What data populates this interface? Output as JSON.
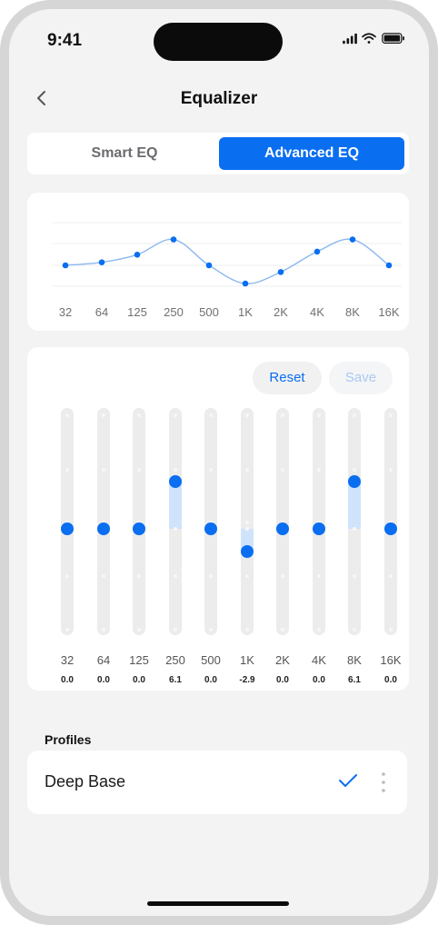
{
  "status_bar": {
    "time": "9:41"
  },
  "header": {
    "title": "Equalizer"
  },
  "segments": {
    "smart": "Smart EQ",
    "advanced": "Advanced EQ",
    "selected": "advanced"
  },
  "curve": {
    "frequencies": [
      "32",
      "64",
      "125",
      "250",
      "500",
      "1K",
      "2K",
      "4K",
      "8K",
      "16K"
    ]
  },
  "actions": {
    "reset": "Reset",
    "save": "Save"
  },
  "bands": [
    {
      "freq": "32",
      "gain": "0.0"
    },
    {
      "freq": "64",
      "gain": "0.0"
    },
    {
      "freq": "125",
      "gain": "0.0"
    },
    {
      "freq": "250",
      "gain": "6.1"
    },
    {
      "freq": "500",
      "gain": "0.0"
    },
    {
      "freq": "1K",
      "gain": "-2.9"
    },
    {
      "freq": "2K",
      "gain": "0.0"
    },
    {
      "freq": "4K",
      "gain": "0.0"
    },
    {
      "freq": "8K",
      "gain": "6.1"
    },
    {
      "freq": "16K",
      "gain": "0.0"
    }
  ],
  "gain_range_db": [
    -12,
    12
  ],
  "profiles": {
    "heading": "Profiles",
    "items": [
      {
        "name": "Deep Base",
        "selected": true
      }
    ]
  },
  "colors": {
    "accent": "#0a6ef0",
    "fill": "#cfe3fb",
    "curve": "#8ab8f0"
  },
  "icons": {
    "back": "chevron-left-icon",
    "check": "checkmark-icon",
    "more": "more-vertical-icon"
  }
}
